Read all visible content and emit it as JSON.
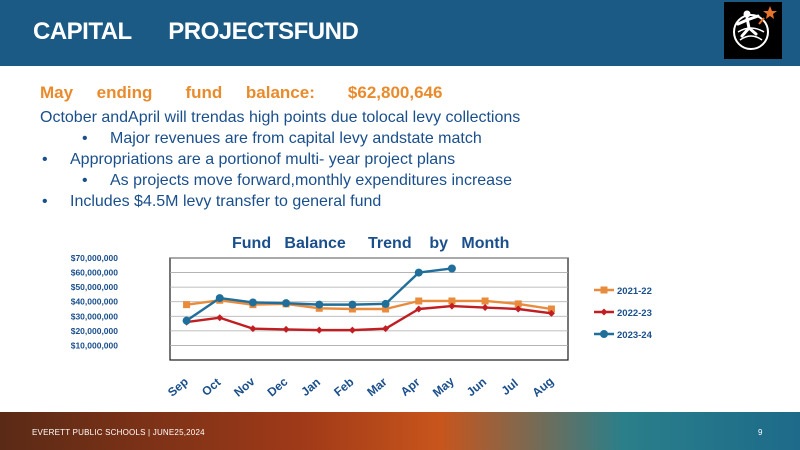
{
  "header": {
    "title": "CAPITAL      PROJECTSFUND",
    "logo_icon": "runner-star-logo-icon"
  },
  "subtitle": "May     ending       fund     balance:       $62,800,646",
  "bullets": [
    {
      "level": 0,
      "marker": "",
      "text": "October andApril will trendas high points due tolocal levy collections"
    },
    {
      "level": 2,
      "marker": "•",
      "text": "Major revenues are from capital levy andstate match"
    },
    {
      "level": 1,
      "marker": "•",
      "text": "Appropriations are a portionof multi- year project plans"
    },
    {
      "level": 2,
      "marker": "•",
      "text": "As projects move forward,monthly expenditures increase"
    },
    {
      "level": 1,
      "marker": "•",
      "text": "Includes $4.5M levy transfer to general fund"
    }
  ],
  "chart_title": "Fund   Balance     Trend    by   Month",
  "chart_data": {
    "type": "line",
    "title": "Fund   Balance     Trend    by   Month",
    "xlabel": "",
    "ylabel": "",
    "categories": [
      "Sep",
      "Oct",
      "Nov",
      "Dec",
      "Jan",
      "Feb",
      "Mar",
      "Apr",
      "May",
      "Jun",
      "Jul",
      "Aug"
    ],
    "y_tick_labels": [
      "$10,000,000",
      "$20,000,000",
      "$30,000,000",
      "$40,000,000",
      "$50,000,000",
      "$60,000,000",
      "$70,000,000"
    ],
    "y_ticks": [
      10000000,
      20000000,
      30000000,
      40000000,
      50000000,
      60000000,
      70000000
    ],
    "ylim": [
      0,
      70000000
    ],
    "grid": true,
    "legend_position": "right",
    "series": [
      {
        "name": "2021-22",
        "color": "#e98b3c",
        "marker": "square",
        "values": [
          38000000,
          41000000,
          38000000,
          38500000,
          35500000,
          35000000,
          35000000,
          40500000,
          40500000,
          40500000,
          38500000,
          35000000
        ]
      },
      {
        "name": "2022-23",
        "color": "#c01e22",
        "marker": "diamond",
        "values": [
          26000000,
          29000000,
          21500000,
          21000000,
          20500000,
          20500000,
          21500000,
          35000000,
          37000000,
          36000000,
          35000000,
          32000000
        ]
      },
      {
        "name": "2023-24",
        "color": "#1f6f9a",
        "marker": "circle",
        "values": [
          27000000,
          42500000,
          39500000,
          39000000,
          38000000,
          38000000,
          38500000,
          60000000,
          62800646,
          null,
          null,
          null
        ]
      }
    ]
  },
  "footer": {
    "text": "EVERETT PUBLIC SCHOOLS  |  JUNE25,2024",
    "page_number": "9"
  },
  "colors": {
    "header_bg": "#1a5a85",
    "subtitle": "#e98b2c",
    "body_text": "#1a4f8c"
  }
}
